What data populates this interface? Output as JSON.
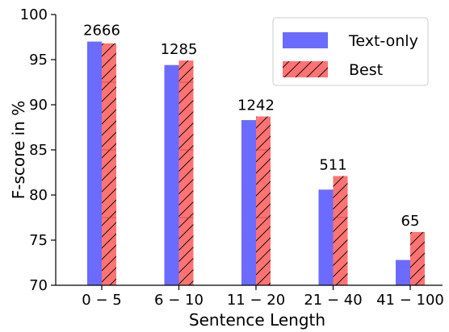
{
  "chart_data": {
    "type": "bar",
    "xlabel": "Sentence Length",
    "ylabel": "F-score in %",
    "ylim": [
      70,
      100
    ],
    "yticks": [
      70,
      75,
      80,
      85,
      90,
      95,
      100
    ],
    "categories": [
      "0 − 5",
      "6 − 10",
      "11 − 20",
      "21 − 40",
      "41 − 100"
    ],
    "series": [
      {
        "name": "Text-only",
        "values": [
          97.0,
          94.4,
          88.3,
          80.6,
          72.8
        ],
        "color": "#6b6bff"
      },
      {
        "name": "Best",
        "values": [
          96.8,
          94.9,
          88.7,
          82.1,
          75.9
        ],
        "color": "#ff7373",
        "hatch": "diagonal"
      }
    ],
    "annotations": [
      "2666",
      "1285",
      "1242",
      "511",
      "65"
    ],
    "legend": {
      "position": "top-right"
    },
    "grid": false
  }
}
